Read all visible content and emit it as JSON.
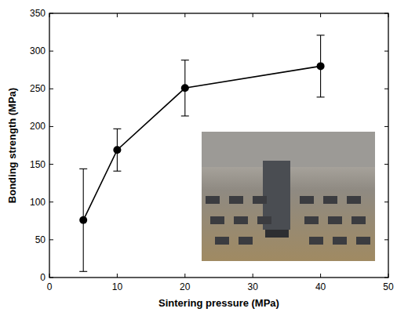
{
  "chart_data": {
    "type": "line",
    "x_label": "Sintering pressure (MPa)",
    "y_label": "Bonding strength (MPa)",
    "x": [
      5,
      10,
      20,
      40
    ],
    "values": [
      76,
      169,
      251,
      280
    ],
    "errors": [
      68,
      28,
      37,
      41
    ],
    "color": "#000000",
    "marker": "circle",
    "line_style": "solid",
    "xlim": [
      0,
      50
    ],
    "xticks": [
      0,
      10,
      20,
      30,
      40,
      50
    ],
    "ylim": [
      0,
      350
    ],
    "yticks": [
      0,
      50,
      100,
      150,
      200,
      250,
      300,
      350
    ],
    "grid": false
  }
}
